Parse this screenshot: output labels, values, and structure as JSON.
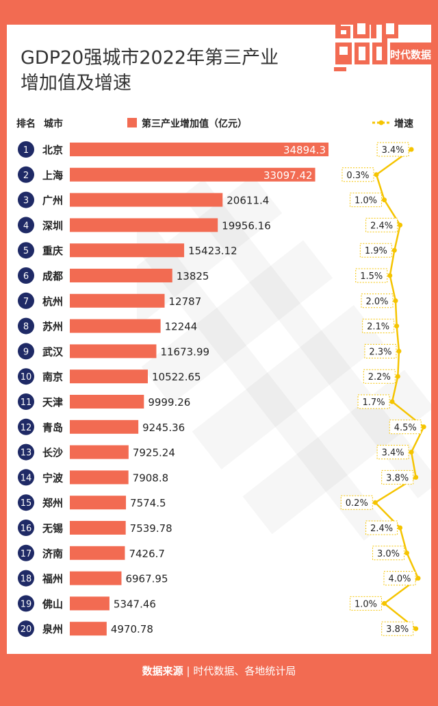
{
  "title_line1": "GDP20强城市2022年第三产业",
  "title_line2": "增加值及增速",
  "headers": {
    "rank": "排名",
    "city": "城市",
    "value_legend": "第三产业增加值（亿元）",
    "growth_legend": "增速"
  },
  "logo": {
    "top": "data",
    "bottom": "god",
    "brand": "时代数据"
  },
  "footer": {
    "label": "数据来源",
    "separator": "|",
    "source": "时代数据、各地统计局"
  },
  "colors": {
    "bar": "#f26b52",
    "rank_circle": "#1f2a66",
    "growth_line": "#f5c400",
    "background": "#f26b52"
  },
  "chart_data": {
    "type": "bar",
    "orientation": "horizontal",
    "categories": [
      "北京",
      "上海",
      "广州",
      "深圳",
      "重庆",
      "成都",
      "杭州",
      "苏州",
      "武汉",
      "南京",
      "天津",
      "青岛",
      "长沙",
      "宁波",
      "郑州",
      "无锡",
      "济南",
      "福州",
      "佛山",
      "泉州"
    ],
    "ranks": [
      "1",
      "2",
      "3",
      "4",
      "5",
      "6",
      "7",
      "8",
      "9",
      "10",
      "11",
      "12",
      "13",
      "14",
      "15",
      "16",
      "17",
      "18",
      "19",
      "20"
    ],
    "series": [
      {
        "name": "第三产业增加值（亿元）",
        "values": [
          34894.3,
          33097.42,
          20611.4,
          19956.16,
          15423.12,
          13825,
          12787,
          12244,
          11673.99,
          10522.65,
          9999.26,
          9245.36,
          7925.24,
          7908.8,
          7574.5,
          7539.78,
          7426.7,
          6967.95,
          5347.46,
          4970.78
        ],
        "labels": [
          "34894.3",
          "33097.42",
          "20611.4",
          "19956.16",
          "15423.12",
          "13825",
          "12787",
          "12244",
          "11673.99",
          "10522.65",
          "9999.26",
          "9245.36",
          "7925.24",
          "7908.8",
          "7574.5",
          "7539.78",
          "7426.7",
          "6967.95",
          "5347.46",
          "4970.78"
        ]
      },
      {
        "name": "增速",
        "values": [
          3.4,
          0.3,
          1.0,
          2.4,
          1.9,
          1.5,
          2.0,
          2.1,
          2.3,
          2.2,
          1.7,
          4.5,
          3.4,
          3.8,
          0.2,
          2.4,
          3.0,
          4.0,
          1.0,
          3.8
        ],
        "labels": [
          "3.4%",
          "0.3%",
          "1.0%",
          "2.4%",
          "1.9%",
          "1.5%",
          "2.0%",
          "2.1%",
          "2.3%",
          "2.2%",
          "1.7%",
          "4.5%",
          "3.4%",
          "3.8%",
          "0.2%",
          "2.4%",
          "3.0%",
          "4.0%",
          "1.0%",
          "3.8%"
        ]
      }
    ]
  }
}
